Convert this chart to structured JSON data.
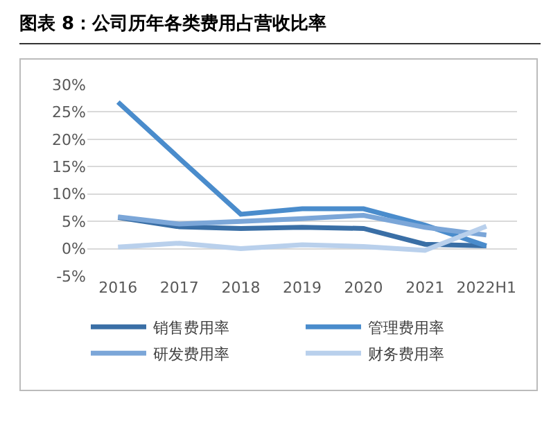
{
  "chart_data": {
    "type": "line",
    "title": "图表 8：公司历年各类费用占营收比率",
    "categories": [
      "2016",
      "2017",
      "2018",
      "2019",
      "2020",
      "2021",
      "2022H1"
    ],
    "series": [
      {
        "name": "销售费用率",
        "color": "#3a6fa6",
        "values": [
          5.7,
          4.0,
          3.7,
          3.9,
          3.7,
          0.8,
          0.5
        ]
      },
      {
        "name": "管理费用率",
        "color": "#4a8ccc",
        "values": [
          26.8,
          16.5,
          6.3,
          7.3,
          7.3,
          4.3,
          0.5
        ]
      },
      {
        "name": "研发费用率",
        "color": "#7ba6d8",
        "values": [
          5.8,
          4.5,
          5.0,
          5.5,
          6.1,
          3.9,
          2.5
        ]
      },
      {
        "name": "财务费用率",
        "color": "#b9d0ec",
        "values": [
          0.3,
          1.0,
          0.0,
          0.7,
          0.4,
          -0.3,
          4.1
        ]
      }
    ],
    "ylim": [
      -5,
      30
    ],
    "yticks": [
      {
        "value": -5,
        "label": "-5%"
      },
      {
        "value": 0,
        "label": "0%"
      },
      {
        "value": 5,
        "label": "5%"
      },
      {
        "value": 10,
        "label": "10%"
      },
      {
        "value": 15,
        "label": "15%"
      },
      {
        "value": 20,
        "label": "20%"
      },
      {
        "value": 25,
        "label": "25%"
      },
      {
        "value": 30,
        "label": "30%"
      }
    ],
    "grid": "y",
    "legend": "bottom",
    "marker": "none",
    "line_style": "solid"
  }
}
